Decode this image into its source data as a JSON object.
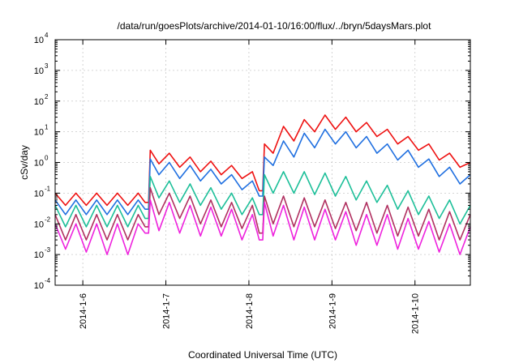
{
  "chart_data": {
    "type": "line",
    "title": "/data/run/goesPlots/archive/2014-01-10/16:00/flux/../bryn/5daysMars.plot",
    "xlabel": "Coordinated Universal Time (UTC)",
    "ylabel": "cSv/day",
    "y_scale": "log",
    "ylim": [
      0.0001,
      10000
    ],
    "y_ticks": [
      {
        "base": "10",
        "exp": "-4"
      },
      {
        "base": "10",
        "exp": "-3"
      },
      {
        "base": "10",
        "exp": "-2"
      },
      {
        "base": "10",
        "exp": "-1"
      },
      {
        "base": "10",
        "exp": "0"
      },
      {
        "base": "10",
        "exp": "1"
      },
      {
        "base": "10",
        "exp": "2"
      },
      {
        "base": "10",
        "exp": "3"
      },
      {
        "base": "10",
        "exp": "4"
      }
    ],
    "xlim": [
      "2014-01-05T16:00",
      "2014-01-10T16:00"
    ],
    "x_ticks": [
      "2014-1-6",
      "2014-1-7",
      "2014-1-8",
      "2014-1-9",
      "2014-1-10"
    ],
    "grid": true,
    "legend": "none",
    "series": [
      {
        "color": "#ee1111",
        "points": [
          [
            "2014-01-05T16:00",
            0.1
          ],
          [
            "2014-01-05T19:00",
            0.04
          ],
          [
            "2014-01-05T22:00",
            0.1
          ],
          [
            "2014-01-06T01:00",
            0.04
          ],
          [
            "2014-01-06T04:00",
            0.1
          ],
          [
            "2014-01-06T07:00",
            0.04
          ],
          [
            "2014-01-06T10:00",
            0.1
          ],
          [
            "2014-01-06T13:00",
            0.04
          ],
          [
            "2014-01-06T16:00",
            0.1
          ],
          [
            "2014-01-06T18:00",
            0.05
          ],
          [
            "2014-01-06T19:00",
            0.05
          ],
          [
            "2014-01-06T19:30",
            2.5
          ],
          [
            "2014-01-06T22:00",
            0.9
          ],
          [
            "2014-01-07T01:00",
            2.0
          ],
          [
            "2014-01-07T04:00",
            0.7
          ],
          [
            "2014-01-07T07:00",
            1.5
          ],
          [
            "2014-01-07T10:00",
            0.5
          ],
          [
            "2014-01-07T13:00",
            1.1
          ],
          [
            "2014-01-07T16:00",
            0.4
          ],
          [
            "2014-01-07T19:00",
            0.8
          ],
          [
            "2014-01-07T22:00",
            0.3
          ],
          [
            "2014-01-08T01:00",
            0.5
          ],
          [
            "2014-01-08T03:00",
            0.12
          ],
          [
            "2014-01-08T04:00",
            0.12
          ],
          [
            "2014-01-08T04:30",
            4.0
          ],
          [
            "2014-01-08T07:00",
            2.0
          ],
          [
            "2014-01-08T10:00",
            15
          ],
          [
            "2014-01-08T13:00",
            5
          ],
          [
            "2014-01-08T16:00",
            25
          ],
          [
            "2014-01-08T19:00",
            10
          ],
          [
            "2014-01-08T22:00",
            35
          ],
          [
            "2014-01-09T01:00",
            12
          ],
          [
            "2014-01-09T04:00",
            30
          ],
          [
            "2014-01-09T07:00",
            10
          ],
          [
            "2014-01-09T10:00",
            20
          ],
          [
            "2014-01-09T13:00",
            7
          ],
          [
            "2014-01-09T16:00",
            12
          ],
          [
            "2014-01-09T19:00",
            4
          ],
          [
            "2014-01-09T22:00",
            7
          ],
          [
            "2014-01-10T01:00",
            2.5
          ],
          [
            "2014-01-10T04:00",
            4
          ],
          [
            "2014-01-10T07:00",
            1.2
          ],
          [
            "2014-01-10T10:00",
            2
          ],
          [
            "2014-01-10T13:00",
            0.7
          ],
          [
            "2014-01-10T16:00",
            1
          ]
        ]
      },
      {
        "color": "#1f6fe0",
        "points": [
          [
            "2014-01-05T16:00",
            0.06
          ],
          [
            "2014-01-05T19:00",
            0.02
          ],
          [
            "2014-01-05T22:00",
            0.06
          ],
          [
            "2014-01-06T01:00",
            0.02
          ],
          [
            "2014-01-06T04:00",
            0.06
          ],
          [
            "2014-01-06T07:00",
            0.02
          ],
          [
            "2014-01-06T10:00",
            0.06
          ],
          [
            "2014-01-06T13:00",
            0.02
          ],
          [
            "2014-01-06T16:00",
            0.06
          ],
          [
            "2014-01-06T18:00",
            0.03
          ],
          [
            "2014-01-06T19:00",
            0.03
          ],
          [
            "2014-01-06T19:30",
            1.3
          ],
          [
            "2014-01-06T22:00",
            0.4
          ],
          [
            "2014-01-07T01:00",
            1.0
          ],
          [
            "2014-01-07T04:00",
            0.3
          ],
          [
            "2014-01-07T07:00",
            0.8
          ],
          [
            "2014-01-07T10:00",
            0.25
          ],
          [
            "2014-01-07T13:00",
            0.6
          ],
          [
            "2014-01-07T16:00",
            0.2
          ],
          [
            "2014-01-07T19:00",
            0.4
          ],
          [
            "2014-01-07T22:00",
            0.13
          ],
          [
            "2014-01-08T01:00",
            0.25
          ],
          [
            "2014-01-08T03:00",
            0.08
          ],
          [
            "2014-01-08T04:00",
            0.08
          ],
          [
            "2014-01-08T04:30",
            1.5
          ],
          [
            "2014-01-08T07:00",
            0.8
          ],
          [
            "2014-01-08T10:00",
            5
          ],
          [
            "2014-01-08T13:00",
            1.5
          ],
          [
            "2014-01-08T16:00",
            9
          ],
          [
            "2014-01-08T19:00",
            3
          ],
          [
            "2014-01-08T22:00",
            12
          ],
          [
            "2014-01-09T01:00",
            4
          ],
          [
            "2014-01-09T04:00",
            10
          ],
          [
            "2014-01-09T07:00",
            3
          ],
          [
            "2014-01-09T10:00",
            7
          ],
          [
            "2014-01-09T13:00",
            2
          ],
          [
            "2014-01-09T16:00",
            4
          ],
          [
            "2014-01-09T19:00",
            1.2
          ],
          [
            "2014-01-09T22:00",
            2.5
          ],
          [
            "2014-01-10T01:00",
            0.7
          ],
          [
            "2014-01-10T04:00",
            1.3
          ],
          [
            "2014-01-10T07:00",
            0.35
          ],
          [
            "2014-01-10T10:00",
            0.7
          ],
          [
            "2014-01-10T13:00",
            0.2
          ],
          [
            "2014-01-10T16:00",
            0.4
          ]
        ]
      },
      {
        "color": "#1dbf99",
        "points": [
          [
            "2014-01-05T16:00",
            0.04
          ],
          [
            "2014-01-05T19:00",
            0.008
          ],
          [
            "2014-01-05T22:00",
            0.04
          ],
          [
            "2014-01-06T01:00",
            0.008
          ],
          [
            "2014-01-06T04:00",
            0.04
          ],
          [
            "2014-01-06T07:00",
            0.008
          ],
          [
            "2014-01-06T10:00",
            0.04
          ],
          [
            "2014-01-06T13:00",
            0.008
          ],
          [
            "2014-01-06T16:00",
            0.04
          ],
          [
            "2014-01-06T18:00",
            0.015
          ],
          [
            "2014-01-06T19:00",
            0.015
          ],
          [
            "2014-01-06T19:30",
            0.35
          ],
          [
            "2014-01-06T22:00",
            0.07
          ],
          [
            "2014-01-07T01:00",
            0.25
          ],
          [
            "2014-01-07T04:00",
            0.05
          ],
          [
            "2014-01-07T07:00",
            0.2
          ],
          [
            "2014-01-07T10:00",
            0.04
          ],
          [
            "2014-01-07T13:00",
            0.15
          ],
          [
            "2014-01-07T16:00",
            0.03
          ],
          [
            "2014-01-07T19:00",
            0.1
          ],
          [
            "2014-01-07T22:00",
            0.02
          ],
          [
            "2014-01-08T01:00",
            0.07
          ],
          [
            "2014-01-08T03:00",
            0.02
          ],
          [
            "2014-01-08T04:00",
            0.02
          ],
          [
            "2014-01-08T04:30",
            0.4
          ],
          [
            "2014-01-08T07:00",
            0.1
          ],
          [
            "2014-01-08T10:00",
            0.5
          ],
          [
            "2014-01-08T13:00",
            0.1
          ],
          [
            "2014-01-08T16:00",
            0.5
          ],
          [
            "2014-01-08T19:00",
            0.09
          ],
          [
            "2014-01-08T22:00",
            0.45
          ],
          [
            "2014-01-09T01:00",
            0.08
          ],
          [
            "2014-01-09T04:00",
            0.35
          ],
          [
            "2014-01-09T07:00",
            0.06
          ],
          [
            "2014-01-09T10:00",
            0.25
          ],
          [
            "2014-01-09T13:00",
            0.05
          ],
          [
            "2014-01-09T16:00",
            0.18
          ],
          [
            "2014-01-09T19:00",
            0.03
          ],
          [
            "2014-01-09T22:00",
            0.12
          ],
          [
            "2014-01-10T01:00",
            0.02
          ],
          [
            "2014-01-10T04:00",
            0.08
          ],
          [
            "2014-01-10T07:00",
            0.015
          ],
          [
            "2014-01-10T10:00",
            0.06
          ],
          [
            "2014-01-10T13:00",
            0.01
          ],
          [
            "2014-01-10T16:00",
            0.04
          ]
        ]
      },
      {
        "color": "#b03060",
        "points": [
          [
            "2014-01-05T16:00",
            0.02
          ],
          [
            "2014-01-05T19:00",
            0.003
          ],
          [
            "2014-01-05T22:00",
            0.02
          ],
          [
            "2014-01-06T01:00",
            0.003
          ],
          [
            "2014-01-06T04:00",
            0.02
          ],
          [
            "2014-01-06T07:00",
            0.003
          ],
          [
            "2014-01-06T10:00",
            0.02
          ],
          [
            "2014-01-06T13:00",
            0.003
          ],
          [
            "2014-01-06T16:00",
            0.02
          ],
          [
            "2014-01-06T18:00",
            0.008
          ],
          [
            "2014-01-06T19:00",
            0.008
          ],
          [
            "2014-01-06T19:30",
            0.15
          ],
          [
            "2014-01-06T22:00",
            0.02
          ],
          [
            "2014-01-07T01:00",
            0.1
          ],
          [
            "2014-01-07T04:00",
            0.015
          ],
          [
            "2014-01-07T07:00",
            0.08
          ],
          [
            "2014-01-07T10:00",
            0.01
          ],
          [
            "2014-01-07T13:00",
            0.06
          ],
          [
            "2014-01-07T16:00",
            0.008
          ],
          [
            "2014-01-07T19:00",
            0.05
          ],
          [
            "2014-01-07T22:00",
            0.007
          ],
          [
            "2014-01-08T01:00",
            0.04
          ],
          [
            "2014-01-08T03:00",
            0.005
          ],
          [
            "2014-01-08T04:00",
            0.005
          ],
          [
            "2014-01-08T04:30",
            0.08
          ],
          [
            "2014-01-08T07:00",
            0.01
          ],
          [
            "2014-01-08T10:00",
            0.08
          ],
          [
            "2014-01-08T13:00",
            0.008
          ],
          [
            "2014-01-08T16:00",
            0.07
          ],
          [
            "2014-01-08T19:00",
            0.008
          ],
          [
            "2014-01-08T22:00",
            0.06
          ],
          [
            "2014-01-09T01:00",
            0.007
          ],
          [
            "2014-01-09T04:00",
            0.05
          ],
          [
            "2014-01-09T07:00",
            0.006
          ],
          [
            "2014-01-09T10:00",
            0.05
          ],
          [
            "2014-01-09T13:00",
            0.005
          ],
          [
            "2014-01-09T16:00",
            0.04
          ],
          [
            "2014-01-09T19:00",
            0.004
          ],
          [
            "2014-01-09T22:00",
            0.035
          ],
          [
            "2014-01-10T01:00",
            0.004
          ],
          [
            "2014-01-10T04:00",
            0.03
          ],
          [
            "2014-01-10T07:00",
            0.003
          ],
          [
            "2014-01-10T10:00",
            0.025
          ],
          [
            "2014-01-10T13:00",
            0.003
          ],
          [
            "2014-01-10T16:00",
            0.02
          ]
        ]
      },
      {
        "color": "#ee22dd",
        "points": [
          [
            "2014-01-05T16:00",
            0.01
          ],
          [
            "2014-01-05T19:00",
            0.0015
          ],
          [
            "2014-01-05T22:00",
            0.01
          ],
          [
            "2014-01-06T01:00",
            0.0012
          ],
          [
            "2014-01-06T04:00",
            0.01
          ],
          [
            "2014-01-06T07:00",
            0.001
          ],
          [
            "2014-01-06T10:00",
            0.01
          ],
          [
            "2014-01-06T13:00",
            0.001
          ],
          [
            "2014-01-06T16:00",
            0.01
          ],
          [
            "2014-01-06T18:00",
            0.005
          ],
          [
            "2014-01-06T19:00",
            0.005
          ],
          [
            "2014-01-06T19:30",
            0.06
          ],
          [
            "2014-01-06T22:00",
            0.006
          ],
          [
            "2014-01-07T01:00",
            0.05
          ],
          [
            "2014-01-07T04:00",
            0.005
          ],
          [
            "2014-01-07T07:00",
            0.04
          ],
          [
            "2014-01-07T10:00",
            0.004
          ],
          [
            "2014-01-07T13:00",
            0.035
          ],
          [
            "2014-01-07T16:00",
            0.004
          ],
          [
            "2014-01-07T19:00",
            0.03
          ],
          [
            "2014-01-07T22:00",
            0.003
          ],
          [
            "2014-01-08T01:00",
            0.02
          ],
          [
            "2014-01-08T03:00",
            0.003
          ],
          [
            "2014-01-08T04:00",
            0.003
          ],
          [
            "2014-01-08T04:30",
            0.05
          ],
          [
            "2014-01-08T07:00",
            0.004
          ],
          [
            "2014-01-08T10:00",
            0.04
          ],
          [
            "2014-01-08T13:00",
            0.003
          ],
          [
            "2014-01-08T16:00",
            0.035
          ],
          [
            "2014-01-08T19:00",
            0.003
          ],
          [
            "2014-01-08T22:00",
            0.03
          ],
          [
            "2014-01-09T01:00",
            0.003
          ],
          [
            "2014-01-09T04:00",
            0.025
          ],
          [
            "2014-01-09T07:00",
            0.002
          ],
          [
            "2014-01-09T10:00",
            0.02
          ],
          [
            "2014-01-09T13:00",
            0.002
          ],
          [
            "2014-01-09T16:00",
            0.02
          ],
          [
            "2014-01-09T19:00",
            0.0015
          ],
          [
            "2014-01-09T22:00",
            0.015
          ],
          [
            "2014-01-10T01:00",
            0.0015
          ],
          [
            "2014-01-10T04:00",
            0.012
          ],
          [
            "2014-01-10T07:00",
            0.0012
          ],
          [
            "2014-01-10T10:00",
            0.01
          ],
          [
            "2014-01-10T13:00",
            0.001
          ],
          [
            "2014-01-10T16:00",
            0.008
          ]
        ]
      }
    ]
  }
}
